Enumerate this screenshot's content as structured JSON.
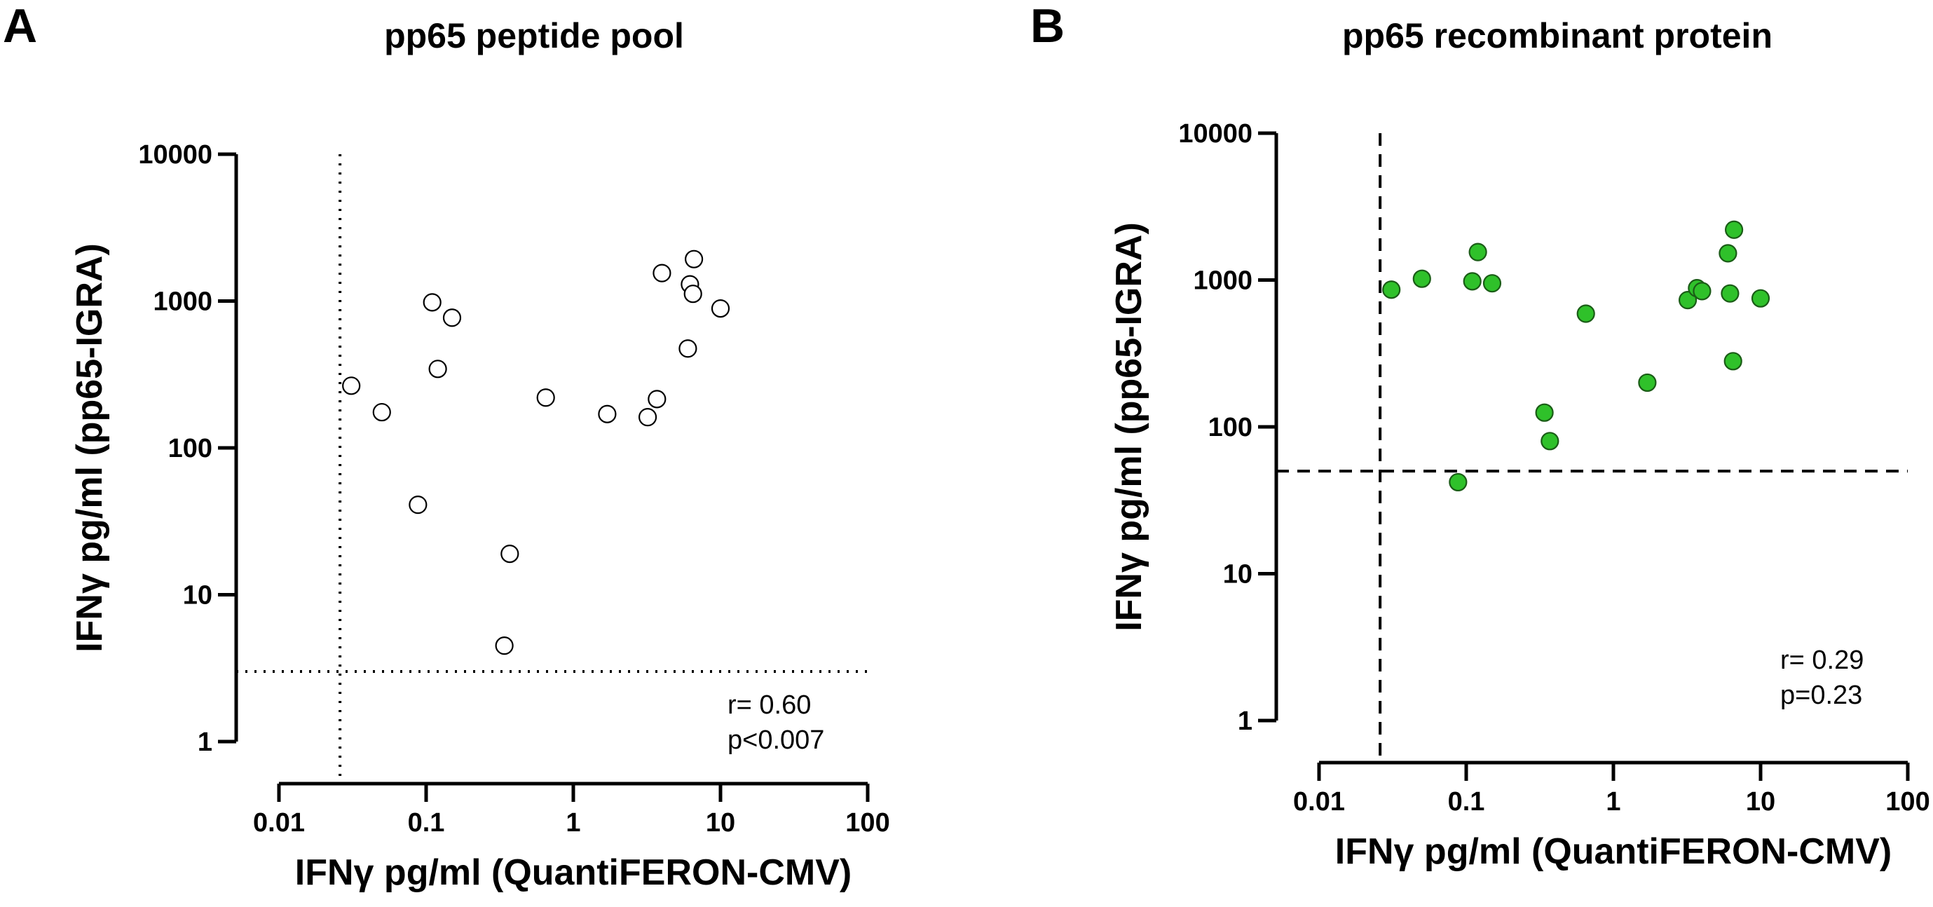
{
  "chart_data": [
    {
      "panel": "A",
      "type": "scatter",
      "title": "pp65 peptide pool",
      "xlabel": "IFNγ pg/ml (QuantiFERON-CMV)",
      "ylabel": "IFNγ pg/ml (pp65-IGRA)",
      "x_scale": "log",
      "y_scale": "log",
      "xlim": [
        0.01,
        100
      ],
      "ylim": [
        1,
        10000
      ],
      "x_ticks": [
        "0.01",
        "0.1",
        "1",
        "10",
        "100"
      ],
      "y_ticks": [
        "1",
        "10",
        "100",
        "1000",
        "10000"
      ],
      "grid": false,
      "marker": {
        "style": "open-circle",
        "fill": "#ffffff",
        "stroke": "#000000"
      },
      "threshold_lines": {
        "x": 0.026,
        "y": 3,
        "style": "dotted"
      },
      "annotations": [
        "r= 0.60",
        "p<0.007"
      ],
      "points": [
        {
          "x": 0.031,
          "y": 265
        },
        {
          "x": 0.05,
          "y": 175
        },
        {
          "x": 0.088,
          "y": 41
        },
        {
          "x": 0.11,
          "y": 980
        },
        {
          "x": 0.12,
          "y": 345
        },
        {
          "x": 0.15,
          "y": 770
        },
        {
          "x": 0.34,
          "y": 4.5
        },
        {
          "x": 0.37,
          "y": 19
        },
        {
          "x": 0.65,
          "y": 220
        },
        {
          "x": 1.7,
          "y": 170
        },
        {
          "x": 3.2,
          "y": 162
        },
        {
          "x": 3.7,
          "y": 215
        },
        {
          "x": 4.0,
          "y": 1550
        },
        {
          "x": 6.0,
          "y": 475
        },
        {
          "x": 6.2,
          "y": 1300
        },
        {
          "x": 6.5,
          "y": 1120
        },
        {
          "x": 6.6,
          "y": 1930
        },
        {
          "x": 10.0,
          "y": 890
        }
      ]
    },
    {
      "panel": "B",
      "type": "scatter",
      "title": "pp65 recombinant protein",
      "xlabel": "IFNγ pg/ml (QuantiFERON-CMV)",
      "ylabel": "IFNγ pg/ml (pp65-IGRA)",
      "x_scale": "log",
      "y_scale": "log",
      "xlim": [
        0.01,
        100
      ],
      "ylim": [
        1,
        10000
      ],
      "x_ticks": [
        "0.01",
        "0.1",
        "1",
        "10",
        "100"
      ],
      "y_ticks": [
        "1",
        "10",
        "100",
        "1000",
        "10000"
      ],
      "grid": false,
      "marker": {
        "style": "filled-circle",
        "fill": "#2fc12a",
        "stroke": "#1a5c16"
      },
      "threshold_lines": {
        "x": 0.026,
        "y": 50,
        "style": "dashed"
      },
      "annotations": [
        "r= 0.29",
        "p=0.23"
      ],
      "points": [
        {
          "x": 0.031,
          "y": 860
        },
        {
          "x": 0.05,
          "y": 1020
        },
        {
          "x": 0.088,
          "y": 42
        },
        {
          "x": 0.11,
          "y": 980
        },
        {
          "x": 0.12,
          "y": 1550
        },
        {
          "x": 0.15,
          "y": 950
        },
        {
          "x": 0.34,
          "y": 125
        },
        {
          "x": 0.37,
          "y": 80
        },
        {
          "x": 0.65,
          "y": 590
        },
        {
          "x": 1.7,
          "y": 200
        },
        {
          "x": 3.2,
          "y": 730
        },
        {
          "x": 3.7,
          "y": 880
        },
        {
          "x": 4.0,
          "y": 840
        },
        {
          "x": 6.0,
          "y": 1520
        },
        {
          "x": 6.2,
          "y": 810
        },
        {
          "x": 6.5,
          "y": 280
        },
        {
          "x": 6.6,
          "y": 2200
        },
        {
          "x": 10.0,
          "y": 750
        }
      ]
    }
  ]
}
